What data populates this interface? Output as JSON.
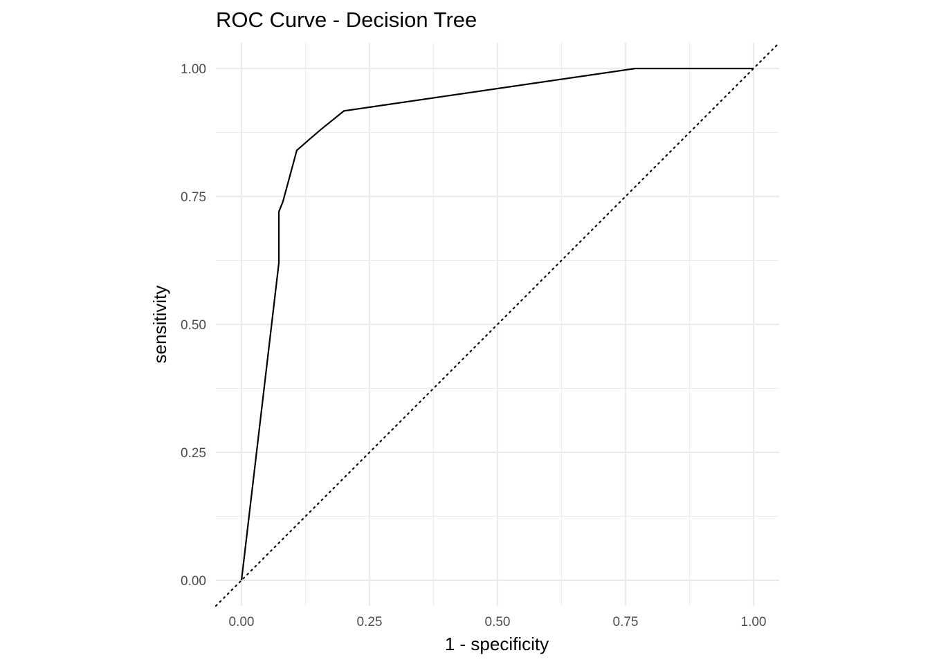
{
  "chart_data": {
    "type": "line",
    "title": "ROC Curve - Decision Tree",
    "xlabel": "1 - specificity",
    "ylabel": "sensitivity",
    "xlim": [
      -0.05,
      1.05
    ],
    "ylim": [
      -0.05,
      1.05
    ],
    "x_ticks": [
      0.0,
      0.25,
      0.5,
      0.75,
      1.0
    ],
    "x_tick_labels": [
      "0.00",
      "0.25",
      "0.50",
      "0.75",
      "1.00"
    ],
    "y_ticks": [
      0.0,
      0.25,
      0.5,
      0.75,
      1.0
    ],
    "y_tick_labels": [
      "0.00",
      "0.25",
      "0.50",
      "0.75",
      "1.00"
    ],
    "grid": true,
    "series": [
      {
        "x": [
          0.0,
          0.073,
          0.073,
          0.081,
          0.108,
          0.131,
          0.154,
          0.2,
          0.769,
          1.0
        ],
        "y": [
          0.0,
          0.62,
          0.72,
          0.74,
          0.84,
          0.86,
          0.88,
          0.917,
          1.0,
          1.0
        ]
      }
    ],
    "reference_line": {
      "style": "dotted",
      "x": [
        -0.05,
        1.05
      ],
      "y": [
        -0.05,
        1.05
      ]
    }
  }
}
